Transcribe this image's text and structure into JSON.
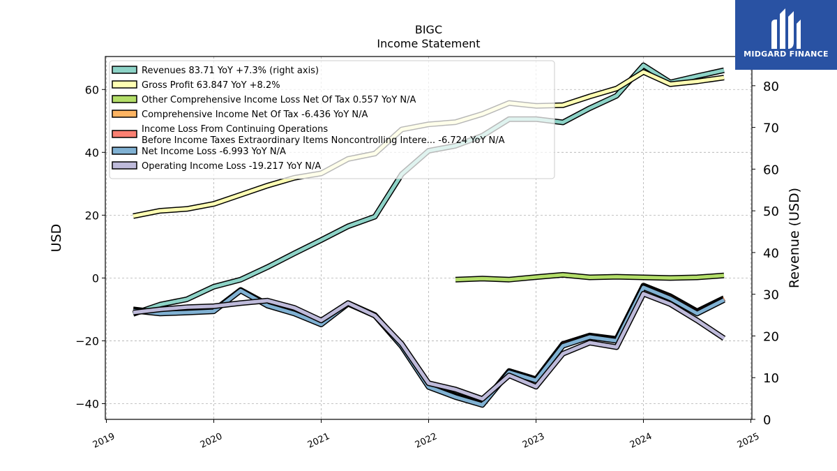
{
  "chart_data": {
    "type": "line",
    "title": "BIGC",
    "subtitle": "Income Statement",
    "ylabel": "USD",
    "y2label": "Revenue (USD)",
    "ylim": [
      -45,
      70.5
    ],
    "y2lim": [
      0,
      87
    ],
    "xlim": [
      2018.99,
      2025.01
    ],
    "x_ticks": [
      "2019",
      "2020",
      "2021",
      "2022",
      "2023",
      "2024",
      "2025"
    ],
    "y_ticks": [
      "−40",
      "−20",
      "0",
      "20",
      "40",
      "60"
    ],
    "y2_ticks": [
      "0",
      "10",
      "20",
      "30",
      "40",
      "50",
      "60",
      "70",
      "80"
    ],
    "grid": true,
    "legend_position": "top-left",
    "x": [
      2019.25,
      2019.5,
      2019.75,
      2020.0,
      2020.25,
      2020.5,
      2020.75,
      2021.0,
      2021.25,
      2021.5,
      2021.75,
      2022.0,
      2022.25,
      2022.5,
      2022.75,
      2023.0,
      2023.25,
      2023.5,
      2023.75,
      2024.0,
      2024.25,
      2024.5,
      2024.75
    ],
    "series": [
      {
        "name": "Revenues  83.71 YoY +7.3% (right axis)",
        "axis": "right",
        "color": "#8dd3c7",
        "values": [
          25.3,
          27.5,
          28.8,
          31.8,
          33.5,
          36.5,
          39.8,
          43.0,
          46.3,
          48.6,
          58.8,
          64.4,
          65.6,
          68.0,
          72.0,
          72.0,
          71.2,
          74.6,
          77.6,
          84.9,
          80.8,
          82.3,
          83.7
        ]
      },
      {
        "name": "Gross Profit  63.847 YoY +8.2%",
        "axis": "left",
        "color": "#ffffb3",
        "values": [
          19.7,
          21.4,
          22.0,
          23.6,
          26.5,
          29.4,
          31.9,
          33.3,
          37.9,
          39.6,
          47.3,
          48.9,
          49.6,
          52.2,
          55.7,
          54.8,
          55.0,
          57.8,
          60.3,
          65.6,
          61.7,
          62.6,
          63.8
        ]
      },
      {
        "name": "Other Comprehensive Income Loss Net Of Tax  0.557 YoY N/A",
        "axis": "left",
        "color": "#b3de69",
        "values": [
          null,
          null,
          null,
          null,
          null,
          null,
          null,
          null,
          null,
          null,
          null,
          null,
          -0.5,
          -0.2,
          -0.5,
          0.3,
          1.0,
          0.2,
          0.4,
          0.2,
          0.0,
          0.2,
          0.8
        ]
      },
      {
        "name": "Comprehensive Income Net Of Tax  -6.436 YoY N/A",
        "axis": "left",
        "color": "#fdb462",
        "values": [
          -10.0,
          -11.0,
          -10.7,
          -10.3,
          -3.8,
          -8.4,
          -11.0,
          -14.4,
          -8.0,
          -11.8,
          -21.4,
          -34.2,
          -37.4,
          -40.0,
          -29.6,
          -32.2,
          -21.0,
          -18.3,
          -19.4,
          -2.4,
          -5.8,
          -10.6,
          -6.4
        ]
      },
      {
        "name": "Income Loss From Continuing Operations\nBefore Income Taxes Extraordinary Items Noncontrolling Intere...  -6.724 YoY N/A",
        "axis": "left",
        "color": "#fb8072",
        "values": [
          -10.2,
          -11.1,
          -10.8,
          -10.4,
          -3.9,
          -8.6,
          -11.1,
          -14.6,
          -8.1,
          -11.9,
          -21.6,
          -34.5,
          -37.6,
          -40.2,
          -29.7,
          -32.4,
          -21.2,
          -18.5,
          -19.7,
          -2.7,
          -6.1,
          -10.9,
          -6.7
        ]
      },
      {
        "name": "Net Income Loss  -6.993 YoY N/A",
        "axis": "left",
        "color": "#80b1d3",
        "values": [
          -10.4,
          -11.3,
          -11.0,
          -10.6,
          -4.0,
          -8.8,
          -11.3,
          -14.8,
          -8.2,
          -12.0,
          -21.8,
          -34.7,
          -37.9,
          -40.4,
          -30.0,
          -32.6,
          -21.6,
          -18.8,
          -20.0,
          -3.0,
          -6.5,
          -11.3,
          -7.0
        ]
      },
      {
        "name": "Operating Income Loss  -19.217 YoY N/A",
        "axis": "left",
        "color": "#bebada",
        "values": [
          -11.0,
          -10.0,
          -9.3,
          -9.0,
          -8.0,
          -7.2,
          -9.5,
          -13.5,
          -8.0,
          -12.0,
          -21.0,
          -33.5,
          -35.5,
          -38.5,
          -31.0,
          -34.6,
          -24.1,
          -20.6,
          -22.0,
          -5.0,
          -8.3,
          -13.5,
          -19.2
        ]
      }
    ]
  },
  "logo": {
    "text": "MIDGARD FINANCE",
    "background": "#2952a3"
  }
}
